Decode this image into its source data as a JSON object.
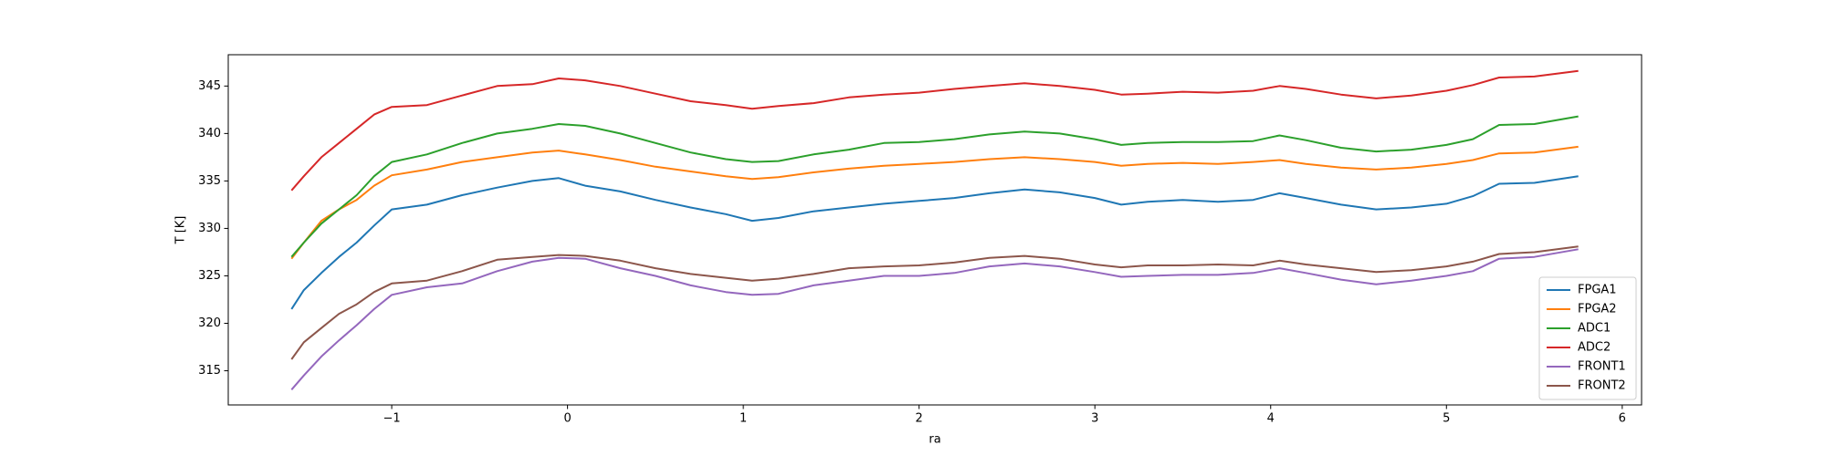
{
  "chart_data": {
    "type": "line",
    "xlabel": "ra",
    "ylabel": "T [K]",
    "x": [
      -1.57,
      -1.5,
      -1.4,
      -1.3,
      -1.2,
      -1.1,
      -1,
      -0.8,
      -0.6,
      -0.4,
      -0.2,
      -0.05,
      0.1,
      0.3,
      0.5,
      0.7,
      0.9,
      1.05,
      1.2,
      1.4,
      1.6,
      1.8,
      2.0,
      2.2,
      2.4,
      2.6,
      2.8,
      3.0,
      3.15,
      3.3,
      3.5,
      3.7,
      3.9,
      4.05,
      4.2,
      4.4,
      4.6,
      4.8,
      5.0,
      5.15,
      5.3,
      5.5,
      5.75
    ],
    "series": [
      {
        "name": "FPGA1",
        "color": "#1f77b4",
        "values": [
          321.5,
          323.5,
          325.3,
          327,
          328.5,
          330.3,
          332,
          332.5,
          333.5,
          334.3,
          335,
          335.3,
          334.5,
          333.9,
          333,
          332.2,
          331.5,
          330.8,
          331.1,
          331.8,
          332.2,
          332.6,
          332.9,
          333.2,
          333.7,
          334.1,
          333.8,
          333.2,
          332.5,
          332.8,
          333,
          332.8,
          333,
          333.7,
          333.2,
          332.5,
          332,
          332.2,
          332.6,
          333.4,
          334.7,
          334.8,
          335.5
        ]
      },
      {
        "name": "FPGA2",
        "color": "#ff7f0e",
        "values": [
          326.8,
          328.5,
          330.8,
          332,
          333,
          334.5,
          335.6,
          336.2,
          337,
          337.5,
          338,
          338.2,
          337.8,
          337.2,
          336.5,
          336,
          335.5,
          335.2,
          335.4,
          335.9,
          336.3,
          336.6,
          336.8,
          337,
          337.3,
          337.5,
          337.3,
          337,
          336.6,
          336.8,
          336.9,
          336.8,
          337,
          337.2,
          336.8,
          336.4,
          336.2,
          336.4,
          336.8,
          337.2,
          337.9,
          338,
          338.6
        ]
      },
      {
        "name": "ADC1",
        "color": "#2ca02c",
        "values": [
          327,
          328.5,
          330.5,
          332,
          333.5,
          335.5,
          337,
          337.8,
          339,
          340,
          340.5,
          341,
          340.8,
          340,
          339,
          338,
          337.3,
          337,
          337.1,
          337.8,
          338.3,
          339,
          339.1,
          339.4,
          339.9,
          340.2,
          340,
          339.4,
          338.8,
          339,
          339.1,
          339.1,
          339.2,
          339.8,
          339.3,
          338.5,
          338.1,
          338.3,
          338.8,
          339.4,
          340.9,
          341,
          341.8
        ]
      },
      {
        "name": "ADC2",
        "color": "#d62728",
        "values": [
          334,
          335.5,
          337.5,
          339,
          340.5,
          342,
          342.8,
          343,
          344,
          345,
          345.2,
          345.8,
          345.6,
          345,
          344.2,
          343.4,
          343,
          342.6,
          342.9,
          343.2,
          343.8,
          344.1,
          344.3,
          344.7,
          345,
          345.3,
          345,
          344.6,
          344.1,
          344.2,
          344.4,
          344.3,
          344.5,
          345,
          344.7,
          344.1,
          343.7,
          344,
          344.5,
          345.1,
          345.9,
          346,
          346.6
        ]
      },
      {
        "name": "FRONT1",
        "color": "#9467bd",
        "values": [
          313,
          314.5,
          316.5,
          318.2,
          319.8,
          321.5,
          323,
          323.8,
          324.2,
          325.5,
          326.5,
          326.9,
          326.8,
          325.8,
          325,
          324,
          323.3,
          323,
          323.1,
          324,
          324.5,
          325,
          325,
          325.3,
          326,
          326.3,
          326,
          325.4,
          324.9,
          325,
          325.1,
          325.1,
          325.3,
          325.8,
          325.3,
          324.6,
          324.1,
          324.5,
          325,
          325.5,
          326.8,
          327,
          327.8
        ]
      },
      {
        "name": "FRONT2",
        "color": "#8c564b",
        "values": [
          316.2,
          318,
          319.5,
          321,
          322,
          323.3,
          324.2,
          324.5,
          325.5,
          326.7,
          327,
          327.2,
          327.1,
          326.6,
          325.8,
          325.2,
          324.8,
          324.5,
          324.7,
          325.2,
          325.8,
          326,
          326.1,
          326.4,
          326.9,
          327.1,
          326.8,
          326.2,
          325.9,
          326.1,
          326.1,
          326.2,
          326.1,
          326.6,
          326.2,
          325.8,
          325.4,
          325.6,
          326,
          326.5,
          327.3,
          327.5,
          328.1
        ]
      }
    ],
    "xlim": [
      -1.93,
      6.11
    ],
    "ylim": [
      311.4,
      348.3
    ],
    "xticks": [
      {
        "value": -1,
        "label": "−1"
      },
      0,
      1,
      2,
      3,
      4,
      5,
      6
    ],
    "yticks": [
      315,
      320,
      325,
      330,
      335,
      340,
      345
    ],
    "legend": "lower right"
  }
}
